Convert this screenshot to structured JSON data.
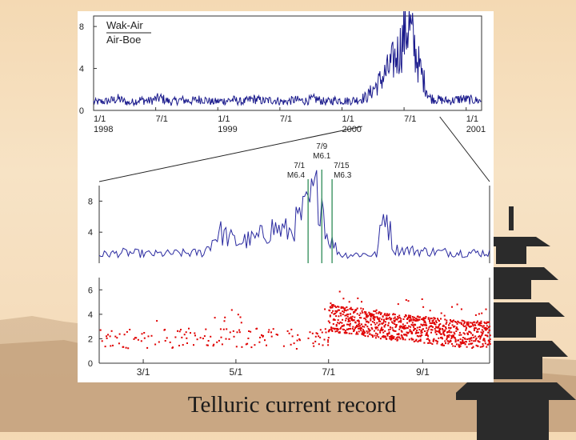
{
  "caption": "Telluric current record",
  "colors": {
    "background": "#f4d9b3",
    "series_top": "#1a1a8c",
    "series_mid": "#2a2aa0",
    "series_scatter": "#e00000",
    "event_lines": "#2e8b57",
    "pagoda": "#2b2b2b"
  },
  "icons": [
    "pagoda-silhouette",
    "mountain-silhouette"
  ],
  "chart_data": [
    {
      "type": "line",
      "legend": [
        "Wak-Air",
        "Air-Boe"
      ],
      "legend_position": "top-left",
      "ylim": [
        0,
        9
      ],
      "yticks": [
        "0",
        "4",
        "8"
      ],
      "x_ticks": [
        {
          "label": "1/1",
          "sublabel": "1998"
        },
        {
          "label": "7/1",
          "sublabel": ""
        },
        {
          "label": "1/1",
          "sublabel": "1999"
        },
        {
          "label": "7/1",
          "sublabel": ""
        },
        {
          "label": "1/1",
          "sublabel": "2000"
        },
        {
          "label": "7/1",
          "sublabel": ""
        },
        {
          "label": "1/1",
          "sublabel": "2001"
        }
      ],
      "x_range": [
        "1998-01-01",
        "2001-02-15"
      ],
      "series": [
        {
          "name": "Wak-Air",
          "x": [
            "1998-01",
            "1998-02",
            "1998-03",
            "1998-04",
            "1998-05",
            "1998-06",
            "1998-07",
            "1998-08",
            "1998-09",
            "1998-10",
            "1998-11",
            "1998-12",
            "1999-01",
            "1999-02",
            "1999-03",
            "1999-04",
            "1999-05",
            "1999-06",
            "1999-07",
            "1999-08",
            "1999-09",
            "1999-10",
            "1999-11",
            "1999-12",
            "2000-01",
            "2000-02",
            "2000-03",
            "2000-04",
            "2000-05",
            "2000-06",
            "2000-07",
            "2000-08",
            "2000-09",
            "2000-10",
            "2000-11",
            "2000-12",
            "2001-01",
            "2001-02"
          ],
          "values": [
            0.8,
            0.9,
            1.1,
            0.7,
            1.0,
            0.9,
            1.2,
            0.8,
            1.0,
            0.9,
            1.1,
            0.8,
            0.9,
            1.0,
            0.8,
            1.1,
            0.9,
            1.0,
            0.8,
            1.0,
            0.9,
            1.1,
            0.8,
            1.0,
            0.9,
            1.0,
            1.3,
            2.5,
            3.8,
            5.5,
            8.3,
            4.2,
            1.2,
            1.0,
            0.9,
            1.1,
            1.0,
            0.9
          ]
        }
      ]
    },
    {
      "type": "line",
      "ylim": [
        0,
        10
      ],
      "yticks": [
        "4",
        "8"
      ],
      "x_range": [
        "2000-03-01",
        "2000-10-15"
      ],
      "series": [
        {
          "x": [
            "2000-03-01",
            "2000-03-15",
            "2000-04-01",
            "2000-04-15",
            "2000-05-01",
            "2000-05-10",
            "2000-05-20",
            "2000-06-01",
            "2000-06-10",
            "2000-06-20",
            "2000-06-25",
            "2000-07-01",
            "2000-07-05",
            "2000-07-09",
            "2000-07-12",
            "2000-07-15",
            "2000-07-20",
            "2000-08-01",
            "2000-08-10",
            "2000-08-15",
            "2000-08-20",
            "2000-09-01",
            "2000-09-15",
            "2000-10-01"
          ],
          "values": [
            1.2,
            1.5,
            1.3,
            1.4,
            1.5,
            4.5,
            3.0,
            3.5,
            5.0,
            4.5,
            6.0,
            8.0,
            10.0,
            9.5,
            4.0,
            3.0,
            1.2,
            1.3,
            1.2,
            8.0,
            2.0,
            1.8,
            1.6,
            1.5
          ]
        }
      ],
      "annotations": [
        {
          "date": "7/1",
          "mag": "M6.4"
        },
        {
          "date": "7/9",
          "mag": "M6.1"
        },
        {
          "date": "7/15",
          "mag": "M6.3"
        }
      ]
    },
    {
      "type": "scatter",
      "ylim": [
        0,
        7
      ],
      "yticks": [
        "0",
        "2",
        "4",
        "6"
      ],
      "x_ticks": [
        "3/1",
        "5/1",
        "7/1",
        "9/1"
      ],
      "x_range": [
        "2000-02-01",
        "2000-10-15"
      ],
      "series": [
        {
          "x": [
            "2000-02-15",
            "2000-03-15",
            "2000-04-15",
            "2000-05-15",
            "2000-06-15",
            "2000-06-30",
            "2000-07-01",
            "2000-07-10",
            "2000-07-20",
            "2000-08-01",
            "2000-08-15",
            "2000-09-01",
            "2000-09-15",
            "2000-10-01"
          ],
          "values": [
            2.0,
            2.1,
            2.2,
            2.1,
            2.0,
            2.1,
            3.8,
            3.6,
            3.5,
            3.2,
            3.0,
            2.8,
            2.6,
            2.4
          ]
        }
      ]
    }
  ]
}
